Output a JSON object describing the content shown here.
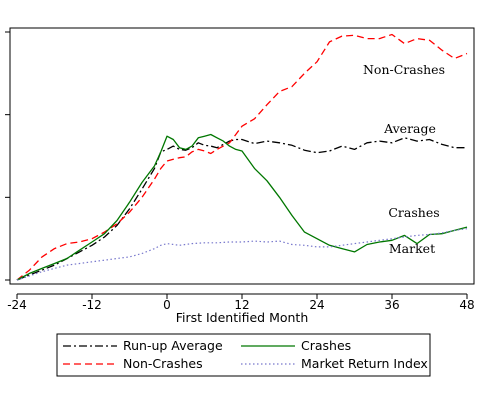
{
  "chart_data": {
    "type": "line",
    "xlabel": "First Identified Month",
    "ylabel": "",
    "title": "",
    "xlim": [
      -24,
      48
    ],
    "ylim": [
      0,
      3
    ],
    "x_ticks": [
      -24,
      -12,
      0,
      12,
      24,
      36,
      48
    ],
    "y_ticks": [
      0,
      1,
      2,
      3
    ],
    "grid": false,
    "legend_position": "bottom",
    "series": [
      {
        "name": "Run-up Average",
        "color": "#000000",
        "dash": "dashdot",
        "annotation": "Average",
        "points": [
          [
            -24,
            0.0
          ],
          [
            -22,
            0.06
          ],
          [
            -20,
            0.12
          ],
          [
            -18,
            0.18
          ],
          [
            -16,
            0.26
          ],
          [
            -14,
            0.34
          ],
          [
            -12,
            0.42
          ],
          [
            -10,
            0.52
          ],
          [
            -8,
            0.66
          ],
          [
            -6,
            0.86
          ],
          [
            -4,
            1.1
          ],
          [
            -2,
            1.35
          ],
          [
            -1,
            1.55
          ],
          [
            0,
            1.58
          ],
          [
            1,
            1.62
          ],
          [
            2,
            1.58
          ],
          [
            3,
            1.57
          ],
          [
            4,
            1.6
          ],
          [
            5,
            1.66
          ],
          [
            6,
            1.63
          ],
          [
            7,
            1.62
          ],
          [
            8,
            1.6
          ],
          [
            9,
            1.64
          ],
          [
            10,
            1.68
          ],
          [
            11,
            1.7
          ],
          [
            12,
            1.7
          ],
          [
            14,
            1.65
          ],
          [
            16,
            1.68
          ],
          [
            18,
            1.66
          ],
          [
            20,
            1.63
          ],
          [
            22,
            1.57
          ],
          [
            24,
            1.54
          ],
          [
            26,
            1.56
          ],
          [
            28,
            1.62
          ],
          [
            30,
            1.58
          ],
          [
            32,
            1.66
          ],
          [
            34,
            1.68
          ],
          [
            36,
            1.66
          ],
          [
            38,
            1.72
          ],
          [
            40,
            1.68
          ],
          [
            42,
            1.7
          ],
          [
            44,
            1.64
          ],
          [
            46,
            1.6
          ],
          [
            48,
            1.6
          ]
        ]
      },
      {
        "name": "Non-Crashes",
        "color": "#ff0000",
        "dash": "dash",
        "annotation": "Non-Crashes",
        "points": [
          [
            -24,
            0.0
          ],
          [
            -22,
            0.12
          ],
          [
            -20,
            0.28
          ],
          [
            -18,
            0.38
          ],
          [
            -16,
            0.44
          ],
          [
            -14,
            0.46
          ],
          [
            -12,
            0.5
          ],
          [
            -10,
            0.58
          ],
          [
            -8,
            0.68
          ],
          [
            -6,
            0.82
          ],
          [
            -4,
            1.0
          ],
          [
            -2,
            1.22
          ],
          [
            -1,
            1.35
          ],
          [
            0,
            1.44
          ],
          [
            1,
            1.46
          ],
          [
            2,
            1.48
          ],
          [
            3,
            1.49
          ],
          [
            4,
            1.55
          ],
          [
            5,
            1.58
          ],
          [
            6,
            1.56
          ],
          [
            7,
            1.53
          ],
          [
            8,
            1.58
          ],
          [
            9,
            1.62
          ],
          [
            10,
            1.66
          ],
          [
            11,
            1.76
          ],
          [
            12,
            1.86
          ],
          [
            14,
            1.95
          ],
          [
            16,
            2.12
          ],
          [
            18,
            2.28
          ],
          [
            20,
            2.34
          ],
          [
            22,
            2.5
          ],
          [
            24,
            2.64
          ],
          [
            26,
            2.88
          ],
          [
            28,
            2.95
          ],
          [
            30,
            2.96
          ],
          [
            32,
            2.92
          ],
          [
            34,
            2.92
          ],
          [
            36,
            2.97
          ],
          [
            38,
            2.86
          ],
          [
            40,
            2.92
          ],
          [
            42,
            2.9
          ],
          [
            44,
            2.78
          ],
          [
            46,
            2.68
          ],
          [
            48,
            2.74
          ]
        ]
      },
      {
        "name": "Crashes",
        "color": "#007700",
        "dash": "solid",
        "annotation": "Crashes",
        "points": [
          [
            -24,
            0.0
          ],
          [
            -22,
            0.08
          ],
          [
            -20,
            0.14
          ],
          [
            -18,
            0.2
          ],
          [
            -16,
            0.26
          ],
          [
            -14,
            0.36
          ],
          [
            -12,
            0.46
          ],
          [
            -10,
            0.56
          ],
          [
            -8,
            0.72
          ],
          [
            -6,
            0.94
          ],
          [
            -4,
            1.18
          ],
          [
            -2,
            1.38
          ],
          [
            -1,
            1.55
          ],
          [
            0,
            1.74
          ],
          [
            1,
            1.7
          ],
          [
            2,
            1.6
          ],
          [
            3,
            1.58
          ],
          [
            4,
            1.62
          ],
          [
            5,
            1.72
          ],
          [
            6,
            1.74
          ],
          [
            7,
            1.76
          ],
          [
            8,
            1.72
          ],
          [
            9,
            1.68
          ],
          [
            10,
            1.62
          ],
          [
            11,
            1.58
          ],
          [
            12,
            1.56
          ],
          [
            14,
            1.35
          ],
          [
            16,
            1.2
          ],
          [
            18,
            1.0
          ],
          [
            20,
            0.78
          ],
          [
            22,
            0.58
          ],
          [
            24,
            0.5
          ],
          [
            26,
            0.42
          ],
          [
            28,
            0.38
          ],
          [
            30,
            0.34
          ],
          [
            32,
            0.43
          ],
          [
            34,
            0.46
          ],
          [
            36,
            0.48
          ],
          [
            38,
            0.54
          ],
          [
            40,
            0.44
          ],
          [
            42,
            0.55
          ],
          [
            44,
            0.56
          ],
          [
            46,
            0.6
          ],
          [
            48,
            0.64
          ]
        ]
      },
      {
        "name": "Market Return Index",
        "color": "#7777cc",
        "dash": "dot",
        "annotation": "Market",
        "points": [
          [
            -24,
            0.0
          ],
          [
            -22,
            0.05
          ],
          [
            -20,
            0.1
          ],
          [
            -18,
            0.14
          ],
          [
            -16,
            0.18
          ],
          [
            -14,
            0.2
          ],
          [
            -12,
            0.22
          ],
          [
            -10,
            0.24
          ],
          [
            -8,
            0.26
          ],
          [
            -6,
            0.28
          ],
          [
            -4,
            0.32
          ],
          [
            -2,
            0.38
          ],
          [
            -1,
            0.42
          ],
          [
            0,
            0.44
          ],
          [
            2,
            0.42
          ],
          [
            4,
            0.44
          ],
          [
            6,
            0.45
          ],
          [
            8,
            0.45
          ],
          [
            10,
            0.46
          ],
          [
            12,
            0.46
          ],
          [
            14,
            0.47
          ],
          [
            16,
            0.46
          ],
          [
            18,
            0.47
          ],
          [
            20,
            0.43
          ],
          [
            22,
            0.42
          ],
          [
            24,
            0.4
          ],
          [
            26,
            0.4
          ],
          [
            28,
            0.42
          ],
          [
            30,
            0.44
          ],
          [
            32,
            0.46
          ],
          [
            34,
            0.48
          ],
          [
            36,
            0.5
          ],
          [
            38,
            0.52
          ],
          [
            40,
            0.54
          ],
          [
            42,
            0.55
          ],
          [
            44,
            0.57
          ],
          [
            46,
            0.6
          ],
          [
            48,
            0.62
          ]
        ]
      }
    ]
  }
}
